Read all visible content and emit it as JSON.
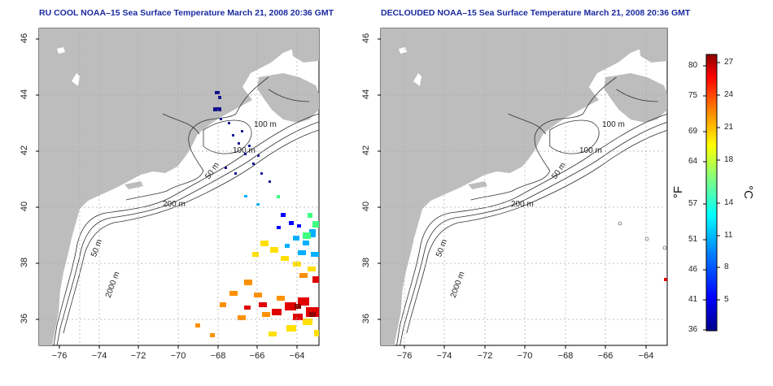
{
  "panels": [
    {
      "id": "left",
      "title": "RU COOL NOAA–15 Sea Surface Temperature March 21, 2008 20:36 GMT"
    },
    {
      "id": "right",
      "title": "DECLOUDED NOAA–15 Sea Surface Temperature March 21, 2008 20:36 GMT"
    }
  ],
  "axes": {
    "lat_ticks": [
      "46",
      "44",
      "42",
      "40",
      "38",
      "36"
    ],
    "lon_ticks": [
      "−76",
      "−74",
      "−72",
      "−70",
      "−68",
      "−66",
      "−64"
    ]
  },
  "contour_labels": {
    "m100a": "100 m",
    "m100b": "100 m",
    "m50a": "50 m",
    "m200": "200 m",
    "m50b": "50 m",
    "m2000": "2000 m"
  },
  "colorbar": {
    "fahrenheit_unit": "°F",
    "celsius_unit": "°C",
    "fahrenheit_ticks": [
      "80",
      "75",
      "69",
      "64",
      "57",
      "51",
      "46",
      "41",
      "36"
    ],
    "celsius_ticks": [
      "27",
      "24",
      "21",
      "18",
      "14",
      "11",
      "8",
      "5"
    ],
    "colors": [
      "#00008b",
      "#0000ff",
      "#0080ff",
      "#00ffff",
      "#80ff80",
      "#ffff00",
      "#ff8000",
      "#ff0000",
      "#8b0000"
    ]
  },
  "map_colors": {
    "land": "#bdbdbd",
    "ocean": "#ffffff",
    "grid": "#aaaaaa"
  }
}
